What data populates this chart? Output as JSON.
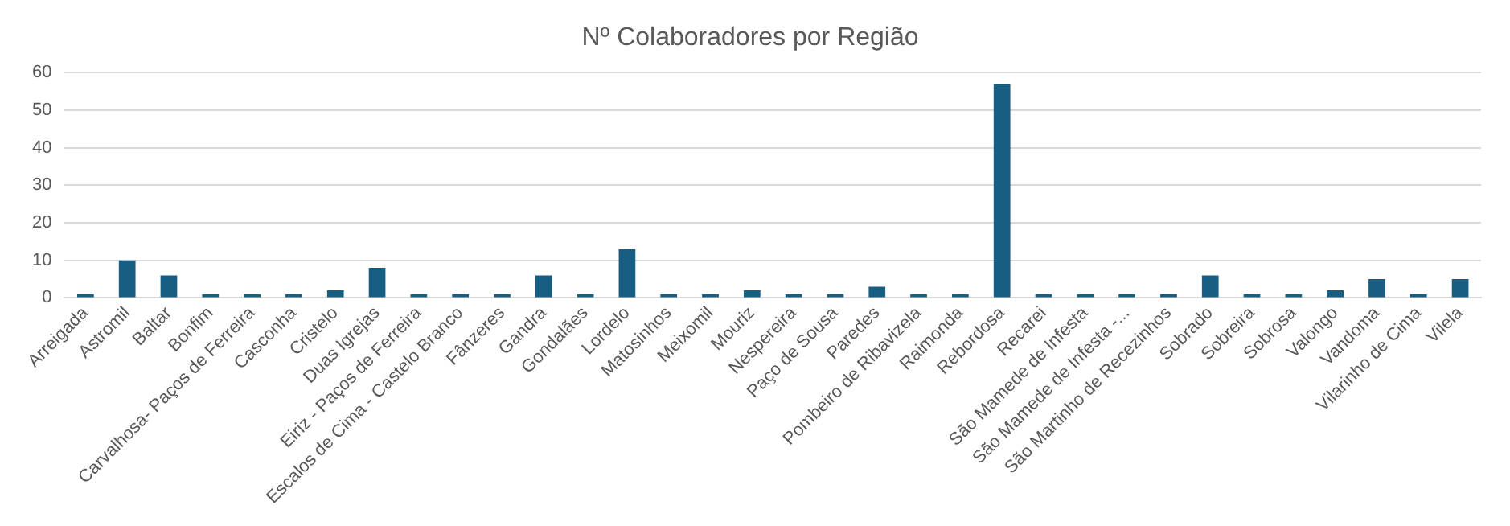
{
  "chart_data": {
    "type": "bar",
    "title": "Nº Colaboradores por Região",
    "categories": [
      "Arreigada",
      "Astromil",
      "Baltar",
      "Bonfim",
      "Carvalhosa- Paços de Ferreira",
      "Casconha",
      "Cristelo",
      "Duas Igrejas",
      "Eiriz - Paços de Ferreira",
      "Escalos de Cima - Castelo Branco",
      "Fânzeres",
      "Gandra",
      "Gondalães",
      "Lordelo",
      "Matosinhos",
      "Meixomil",
      "Mouriz",
      "Nespereira",
      "Paço de Sousa",
      "Paredes",
      "Pombeiro de Ribavizela",
      "Raimonda",
      "Rebordosa",
      "Recarei",
      "São Mamede de Infesta",
      "São Mamede de Infesta -...",
      "São Martinho de Recezinhos",
      "Sobrado",
      "Sobreira",
      "Sobrosa",
      "Valongo",
      "Vandoma",
      "Vilarinho de Cima",
      "Vilela"
    ],
    "values": [
      1,
      10,
      6,
      1,
      1,
      1,
      2,
      8,
      1,
      1,
      1,
      6,
      1,
      13,
      1,
      1,
      2,
      1,
      1,
      3,
      1,
      1,
      57,
      1,
      1,
      1,
      1,
      6,
      1,
      1,
      2,
      5,
      1,
      5
    ],
    "color": "#175e82",
    "ylim": [
      0,
      60
    ],
    "yticks": [
      0,
      10,
      20,
      30,
      40,
      50,
      60
    ],
    "grid": "y"
  }
}
